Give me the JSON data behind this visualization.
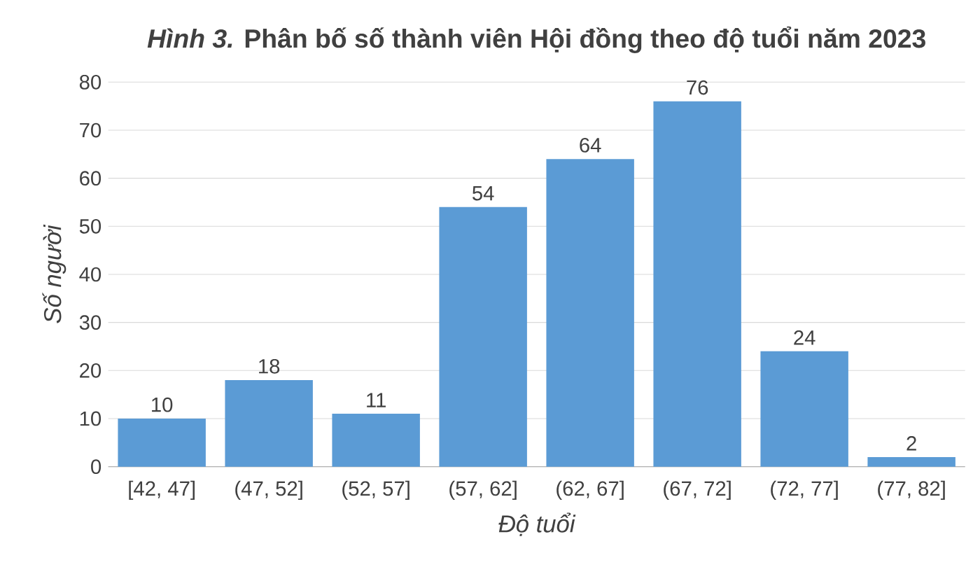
{
  "chart_data": {
    "type": "bar",
    "title": "*Hình 3.* Phân bố số thành viên Hội đồng theo độ tuổi năm 2023",
    "xlabel": "Độ tuổi",
    "ylabel": "Số người",
    "categories": [
      "[42, 47]",
      "(47, 52]",
      "(52, 57]",
      "(57, 62]",
      "(62, 67]",
      "(67, 72]",
      "(72, 77]",
      "(77, 82]"
    ],
    "values": [
      10,
      18,
      11,
      54,
      64,
      76,
      24,
      2
    ],
    "color": "#5b9bd5",
    "ylim": [
      0,
      80
    ],
    "yticks": [
      0,
      10,
      20,
      30,
      40,
      50,
      60,
      70,
      80
    ],
    "grid": "y",
    "data_labels": true
  }
}
